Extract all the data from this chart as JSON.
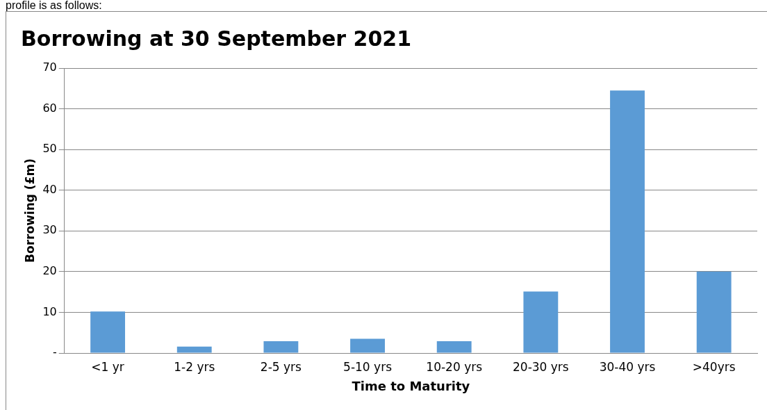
{
  "chart_data": {
    "type": "bar",
    "title": "Borrowing at 30 September 2021",
    "xlabel": "Time to Maturity",
    "ylabel": "Borrowing (£m)",
    "annotations": [
      "profile is as follows:"
    ],
    "categories": [
      "<1 yr",
      "1-2 yrs",
      "2-5 yrs",
      "5-10 yrs",
      "10-20 yrs",
      "20-30 yrs",
      "30-40 yrs",
      ">40yrs"
    ],
    "values": [
      10.2,
      1.6,
      2.9,
      3.5,
      2.9,
      15.1,
      64.5,
      20
    ],
    "color": "#5b9bd5",
    "ylim": [
      0,
      70
    ],
    "yticks": [
      {
        "value": 0,
        "label": "-"
      },
      10,
      20,
      30,
      40,
      50,
      60,
      70
    ],
    "grid": "y",
    "legend": false
  }
}
